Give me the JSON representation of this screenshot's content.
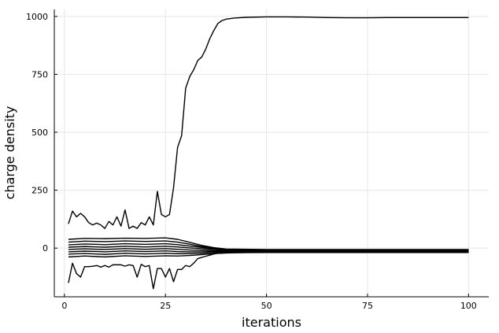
{
  "chart_data": {
    "type": "line",
    "title": "",
    "xlabel": "iterations",
    "ylabel": "charge density",
    "xlim": [
      -2.5,
      105
    ],
    "ylim": [
      -210,
      1030
    ],
    "xticks": [
      0,
      25,
      50,
      75,
      100
    ],
    "yticks": [
      0,
      250,
      500,
      750,
      1000
    ],
    "xtick_labels": [
      "0",
      "25",
      "50",
      "75",
      "100"
    ],
    "ytick_labels": [
      "0",
      "250",
      "500",
      "750",
      "1000"
    ],
    "grid": true,
    "legend": "none",
    "line_color": "#000000",
    "series": [
      {
        "x": [
          1,
          2,
          3,
          4,
          5,
          6,
          7,
          8,
          9,
          10,
          11,
          12,
          13,
          14,
          15,
          16,
          17,
          18,
          19,
          20,
          21,
          22,
          23,
          24,
          25,
          26,
          27,
          28,
          29,
          30,
          31,
          32,
          33,
          34,
          35,
          36,
          37,
          38,
          39,
          40,
          42,
          45,
          50,
          55,
          60,
          65,
          70,
          75,
          80,
          85,
          90,
          95,
          100
        ],
        "y": [
          105,
          160,
          135,
          150,
          135,
          110,
          100,
          108,
          100,
          85,
          115,
          100,
          135,
          95,
          165,
          85,
          95,
          85,
          110,
          100,
          135,
          100,
          245,
          145,
          135,
          145,
          260,
          435,
          485,
          690,
          740,
          770,
          810,
          825,
          860,
          905,
          940,
          970,
          982,
          988,
          993,
          996,
          998,
          998,
          997,
          995,
          994,
          994,
          995,
          995,
          995,
          995,
          995
        ]
      },
      {
        "x": [
          1,
          5,
          10,
          15,
          20,
          25,
          28,
          31,
          34,
          37,
          40,
          50,
          60,
          80,
          100
        ],
        "y": [
          38,
          42,
          41,
          43,
          42,
          44,
          38,
          25,
          12,
          2,
          -4,
          -6,
          -6,
          -6,
          -6
        ]
      },
      {
        "x": [
          1,
          5,
          10,
          15,
          20,
          25,
          28,
          31,
          34,
          37,
          40,
          50,
          60,
          80,
          100
        ],
        "y": [
          26,
          30,
          28,
          31,
          29,
          31,
          26,
          17,
          7,
          0,
          -5,
          -7,
          -7,
          -7,
          -7
        ]
      },
      {
        "x": [
          1,
          5,
          10,
          15,
          20,
          25,
          28,
          31,
          34,
          37,
          40,
          50,
          60,
          80,
          100
        ],
        "y": [
          14,
          18,
          15,
          19,
          16,
          19,
          15,
          9,
          3,
          -3,
          -7,
          -9,
          -9,
          -9,
          -9
        ]
      },
      {
        "x": [
          1,
          5,
          10,
          15,
          20,
          25,
          28,
          31,
          34,
          37,
          40,
          50,
          60,
          80,
          100
        ],
        "y": [
          4,
          7,
          4,
          8,
          5,
          8,
          5,
          1,
          -3,
          -6,
          -9,
          -11,
          -11,
          -11,
          -11
        ]
      },
      {
        "x": [
          1,
          5,
          10,
          15,
          20,
          25,
          28,
          31,
          34,
          37,
          40,
          50,
          60,
          80,
          100
        ],
        "y": [
          -6,
          -3,
          -6,
          -2,
          -5,
          -2,
          -5,
          -8,
          -10,
          -11,
          -12,
          -13,
          -13,
          -13,
          -13
        ]
      },
      {
        "x": [
          1,
          5,
          10,
          15,
          20,
          25,
          28,
          31,
          34,
          37,
          40,
          50,
          60,
          80,
          100
        ],
        "y": [
          -16,
          -13,
          -16,
          -12,
          -15,
          -12,
          -15,
          -16,
          -16,
          -15,
          -15,
          -15,
          -15,
          -15,
          -15
        ]
      },
      {
        "x": [
          1,
          5,
          10,
          15,
          20,
          25,
          28,
          31,
          34,
          37,
          40,
          50,
          60,
          80,
          100
        ],
        "y": [
          -26,
          -23,
          -27,
          -22,
          -25,
          -22,
          -24,
          -24,
          -22,
          -19,
          -17,
          -17,
          -17,
          -17,
          -17
        ]
      },
      {
        "x": [
          1,
          5,
          10,
          15,
          20,
          25,
          28,
          31,
          34,
          37,
          40,
          50,
          60,
          80,
          100
        ],
        "y": [
          -38,
          -34,
          -38,
          -33,
          -36,
          -33,
          -34,
          -32,
          -28,
          -24,
          -20,
          -19,
          -19,
          -19,
          -19
        ]
      },
      {
        "x": [
          1,
          2,
          3,
          4,
          5,
          6,
          7,
          8,
          9,
          10,
          11,
          12,
          13,
          14,
          15,
          16,
          17,
          18,
          19,
          20,
          21,
          22,
          23,
          24,
          25,
          26,
          27,
          28,
          29,
          30,
          31,
          32,
          33,
          34,
          35,
          36,
          37,
          38,
          39,
          40,
          42,
          45,
          50,
          55,
          60,
          65,
          70,
          75,
          80,
          85,
          90,
          95,
          100
        ],
        "y": [
          -150,
          -65,
          -110,
          -125,
          -80,
          -80,
          -78,
          -75,
          -82,
          -75,
          -82,
          -72,
          -72,
          -72,
          -78,
          -72,
          -75,
          -125,
          -70,
          -80,
          -75,
          -175,
          -88,
          -88,
          -125,
          -88,
          -145,
          -92,
          -92,
          -75,
          -80,
          -65,
          -45,
          -40,
          -35,
          -30,
          -25,
          -22,
          -22,
          -21,
          -20,
          -19,
          -19,
          -18,
          -18,
          -18,
          -18,
          -18,
          -17,
          -17,
          -17,
          -17,
          -17
        ]
      }
    ]
  }
}
